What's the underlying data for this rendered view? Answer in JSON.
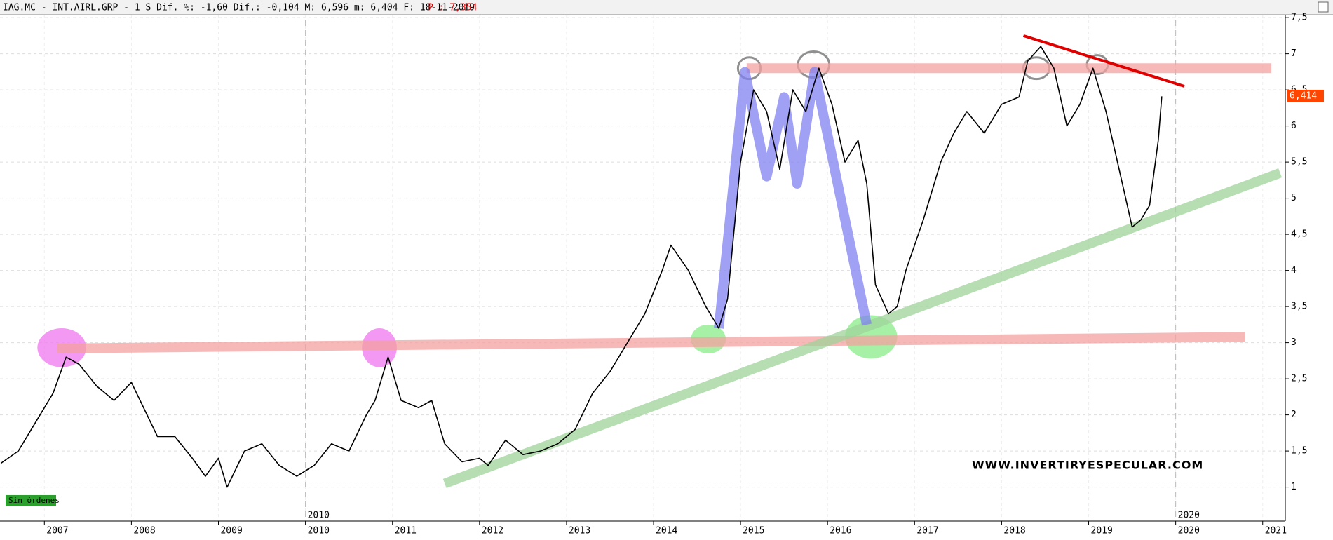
{
  "chart_data": {
    "type": "line",
    "title": "IAG.MC - INT.AIRL.GRP - 1 S Dif. %: -1,60 Dif.: -0,104 M: 6,596 m: 6,404 F: 18-11-2019",
    "quote": "P : 7,354",
    "last_price": {
      "value": 6.414,
      "label": "6,414"
    },
    "watermark": "WWW.INVERTIRYESPECULAR.COM",
    "status": "Sin órdenes",
    "color": "#000000",
    "x": [
      2006.5,
      2006.7,
      2006.9,
      2007.1,
      2007.25,
      2007.4,
      2007.6,
      2007.8,
      2008.0,
      2008.1,
      2008.3,
      2008.5,
      2008.7,
      2008.85,
      2009.0,
      2009.1,
      2009.3,
      2009.5,
      2009.7,
      2009.9,
      2010.1,
      2010.3,
      2010.5,
      2010.7,
      2010.8,
      2010.95,
      2011.1,
      2011.3,
      2011.45,
      2011.6,
      2011.8,
      2012.0,
      2012.1,
      2012.3,
      2012.5,
      2012.7,
      2012.9,
      2013.1,
      2013.3,
      2013.5,
      2013.7,
      2013.9,
      2014.1,
      2014.2,
      2014.4,
      2014.6,
      2014.75,
      2014.85,
      2015.0,
      2015.15,
      2015.3,
      2015.45,
      2015.6,
      2015.75,
      2015.9,
      2016.05,
      2016.2,
      2016.35,
      2016.45,
      2016.55,
      2016.7,
      2016.8,
      2016.9,
      2017.1,
      2017.3,
      2017.45,
      2017.6,
      2017.8,
      2018.0,
      2018.2,
      2018.3,
      2018.45,
      2018.6,
      2018.75,
      2018.9,
      2019.05,
      2019.2,
      2019.35,
      2019.5,
      2019.6,
      2019.7,
      2019.8,
      2019.84
    ],
    "values": [
      1.33,
      1.5,
      1.9,
      2.3,
      2.8,
      2.7,
      2.4,
      2.2,
      2.45,
      2.2,
      1.7,
      1.7,
      1.4,
      1.15,
      1.4,
      1.0,
      1.5,
      1.6,
      1.3,
      1.15,
      1.3,
      1.6,
      1.5,
      2.0,
      2.2,
      2.8,
      2.2,
      2.1,
      2.2,
      1.6,
      1.35,
      1.4,
      1.3,
      1.65,
      1.45,
      1.5,
      1.6,
      1.8,
      2.3,
      2.6,
      3.0,
      3.4,
      4.0,
      4.35,
      4.0,
      3.5,
      3.2,
      3.6,
      5.5,
      6.5,
      6.2,
      5.4,
      6.5,
      6.2,
      6.8,
      6.3,
      5.5,
      5.8,
      5.2,
      3.8,
      3.4,
      3.5,
      4.0,
      4.7,
      5.5,
      5.9,
      6.2,
      5.9,
      6.3,
      6.4,
      6.9,
      7.1,
      6.8,
      6.0,
      6.3,
      6.8,
      6.2,
      5.4,
      4.6,
      4.7,
      4.9,
      5.8,
      6.41
    ],
    "xlim": [
      2006.49,
      2021.26
    ],
    "ylim": [
      0.53,
      7.54
    ],
    "xticks": [
      2007,
      2008,
      2009,
      2010,
      2011,
      2012,
      2013,
      2014,
      2015,
      2016,
      2017,
      2018,
      2019,
      2020,
      2021
    ],
    "yticks": [
      1,
      {
        "value": 1.5,
        "label": "1,5"
      },
      2,
      {
        "value": 2.5,
        "label": "2,5"
      },
      3,
      {
        "value": 3.5,
        "label": "3,5"
      },
      4,
      {
        "value": 4.5,
        "label": "4,5"
      },
      5,
      {
        "value": 5.5,
        "label": "5,5"
      },
      6,
      {
        "value": 6.5,
        "label": "6,5"
      },
      7,
      {
        "value": 7.5,
        "label": "7,5"
      }
    ],
    "marker_years": [
      2010,
      2020
    ],
    "grid": true,
    "trendlines": [
      {
        "color": "#f4a0a0",
        "x": [
          2015.07,
          2021.1
        ],
        "y": [
          6.8,
          6.8
        ]
      },
      {
        "color": "#f4a0a0",
        "x": [
          2007.15,
          2020.8
        ],
        "y": [
          2.92,
          3.08
        ]
      },
      {
        "color": "#9fd39a",
        "x": [
          2011.6,
          2021.2
        ],
        "y": [
          1.05,
          5.35
        ]
      },
      {
        "color": "#e00000",
        "x": [
          2018.25,
          2020.1
        ],
        "y": [
          7.25,
          6.55
        ]
      },
      {
        "color": "#8080f0",
        "x": [
          2014.75,
          2015.05,
          2015.3,
          2015.5,
          2015.65,
          2015.85,
          2016.45
        ],
        "y": [
          3.2,
          6.75,
          5.3,
          6.4,
          5.2,
          6.75,
          3.25
        ]
      }
    ],
    "highlights": [
      {
        "color": "#f080f0",
        "x": 2007.2,
        "y": 2.93,
        "rx": 0.28,
        "ry": 0.27
      },
      {
        "color": "#f080f0",
        "x": 2010.85,
        "y": 2.93,
        "rx": 0.2,
        "ry": 0.27
      },
      {
        "color": "#90ee90",
        "x": 2014.63,
        "y": 3.05,
        "rx": 0.2,
        "ry": 0.2
      },
      {
        "color": "#90ee90",
        "x": 2016.5,
        "y": 3.08,
        "rx": 0.3,
        "ry": 0.3
      },
      {
        "color": "#909090",
        "x": 2015.1,
        "y": 6.8,
        "rx": 0.13,
        "ry": 0.15
      },
      {
        "color": "#909090",
        "x": 2015.84,
        "y": 6.85,
        "rx": 0.18,
        "ry": 0.18
      },
      {
        "color": "#909090",
        "x": 2018.4,
        "y": 6.8,
        "rx": 0.15,
        "ry": 0.15
      },
      {
        "color": "#909090",
        "x": 2019.1,
        "y": 6.85,
        "rx": 0.12,
        "ry": 0.13
      }
    ]
  }
}
